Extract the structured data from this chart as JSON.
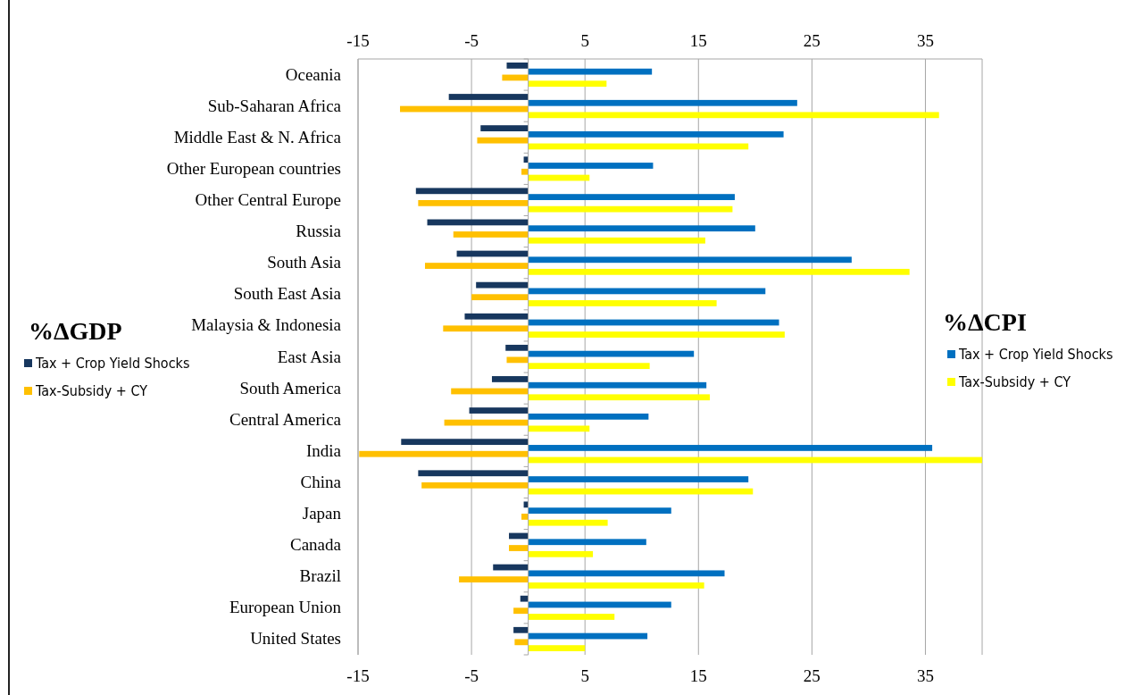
{
  "chart_data": {
    "type": "bar",
    "orientation": "horizontal",
    "categories": [
      "Oceania",
      "Sub-Saharan Africa",
      "Middle East & N. Africa",
      "Other European countries",
      "Other Central Europe",
      "Russia",
      "South Asia",
      "South East Asia",
      "Malaysia & Indonesia",
      "East Asia",
      "South America",
      "Central America",
      "India",
      "China",
      "Japan",
      "Canada",
      "Brazil",
      "European Union",
      "United States"
    ],
    "series": [
      {
        "name": "Tax + Crop Yield Shocks",
        "color": "#17375e",
        "values": [
          -1.9,
          -7.0,
          -4.2,
          -0.4,
          -9.9,
          -8.9,
          -6.3,
          -4.6,
          -5.6,
          -2.0,
          -3.2,
          -5.2,
          -11.2,
          -9.7,
          -0.4,
          -1.7,
          -3.1,
          -0.7,
          -1.3
        ]
      },
      {
        "name": "Tax-Subsidy + CY",
        "color": "#ffc000",
        "values": [
          -2.3,
          -11.3,
          -4.5,
          -0.6,
          -9.7,
          -6.6,
          -9.1,
          -5.0,
          -7.5,
          -1.9,
          -6.8,
          -7.4,
          -14.9,
          -9.4,
          -0.6,
          -1.7,
          -6.1,
          -1.3,
          -1.2
        ]
      },
      {
        "name": "Tax + Crop Yield Shocks",
        "color": "#0070c0",
        "values": [
          10.9,
          23.7,
          22.5,
          11.0,
          18.2,
          20.0,
          28.5,
          20.9,
          22.1,
          14.6,
          15.7,
          10.6,
          35.6,
          19.4,
          12.6,
          10.4,
          17.3,
          12.6,
          10.5
        ]
      },
      {
        "name": "Tax-Subsidy + CY",
        "color": "#ffff00",
        "values": [
          6.9,
          36.2,
          19.4,
          5.4,
          18.0,
          15.6,
          33.6,
          16.6,
          22.6,
          10.7,
          16.0,
          5.4,
          40,
          19.8,
          7.0,
          5.7,
          15.5,
          7.6,
          5.0
        ]
      }
    ],
    "xlim": [
      -15,
      40
    ],
    "xticks": [
      -15,
      -5,
      5,
      15,
      25,
      35
    ],
    "x2lim": [
      -15,
      40
    ],
    "x2ticks": [
      -15,
      -5,
      5,
      15,
      25,
      35
    ],
    "grid": "x",
    "legend": "left",
    "annotations": [
      "%ΔGDP",
      "%ΔCPI"
    ]
  }
}
